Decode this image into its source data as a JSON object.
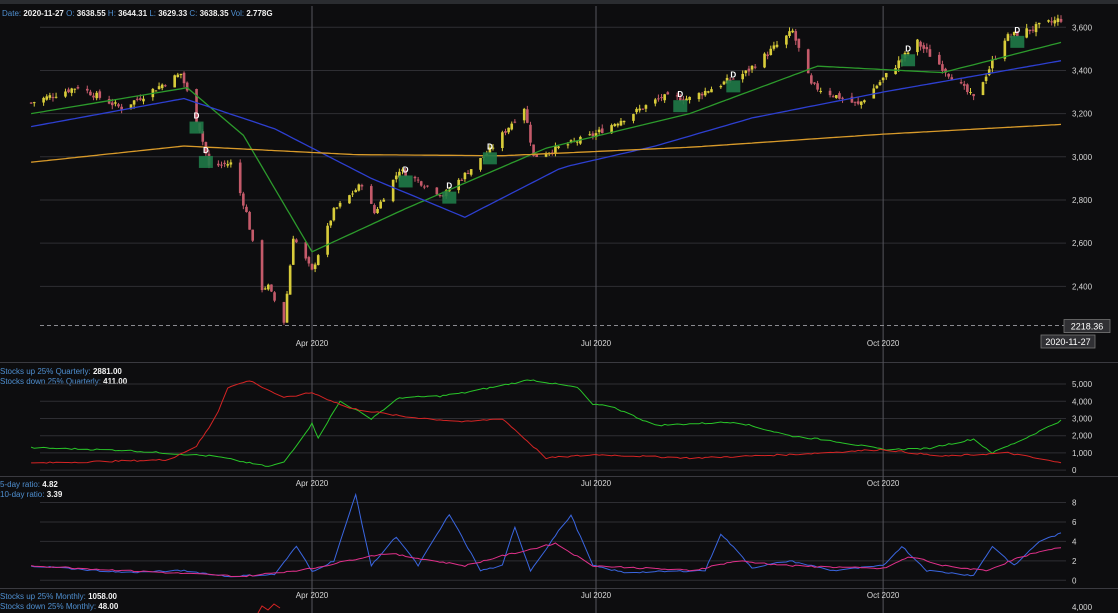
{
  "header": {
    "date_label": "Date:",
    "date": "2020-11-27",
    "open_label": "O:",
    "open": "3638.55",
    "high_label": "H:",
    "high": "3644.31",
    "low_label": "L:",
    "low": "3629.33",
    "close_label": "C:",
    "close": "3638.35",
    "vol_label": "Vol:",
    "vol": "2.778G"
  },
  "crosshair": {
    "price_value": "2218.36",
    "date_value": "2020-11-27"
  },
  "colors": {
    "background": "#0d0d0f",
    "grid": "#2e2e33",
    "axis_text": "#d8d8d8",
    "candle_up": "#d8cc3a",
    "candle_down": "#c45a6a",
    "sma_green": "#2c9a2c",
    "sma_blue": "#2d3fd0",
    "sma_orange": "#d89a2a",
    "marker_fill": "#1f7a48",
    "up25": "#29c429",
    "down25": "#d42424",
    "ratio5": "#3a66e0",
    "ratio10": "#e0308a"
  },
  "chart_data": [
    {
      "type": "candlestick",
      "title": "",
      "x_axis": {
        "range": [
          "2020-01-02",
          "2020-11-27"
        ],
        "tick_labels": [
          "Apr 2020",
          "Jul 2020",
          "Oct 2020"
        ]
      },
      "y_axis": {
        "range": [
          2170,
          3680
        ],
        "tick_labels": [
          "2,400",
          "2,600",
          "2,800",
          "3,000",
          "3,200",
          "3,400",
          "3,600"
        ],
        "ticks": [
          2400,
          2600,
          2800,
          3000,
          3200,
          3400,
          3600
        ]
      },
      "grid": true,
      "close_anchors": [
        [
          "2020-01-02",
          3250
        ],
        [
          "2020-01-17",
          3325
        ],
        [
          "2020-01-31",
          3225
        ],
        [
          "2020-02-19",
          3385
        ],
        [
          "2020-02-25",
          3130
        ],
        [
          "2020-02-28",
          2955
        ],
        [
          "2020-03-06",
          2970
        ],
        [
          "2020-03-11",
          2740
        ],
        [
          "2020-03-16",
          2390
        ],
        [
          "2020-03-18",
          2400
        ],
        [
          "2020-03-23",
          2235
        ],
        [
          "2020-03-26",
          2630
        ],
        [
          "2020-04-01",
          2470
        ],
        [
          "2020-04-08",
          2750
        ],
        [
          "2020-04-17",
          2875
        ],
        [
          "2020-04-21",
          2740
        ],
        [
          "2020-04-29",
          2940
        ],
        [
          "2020-05-13",
          2820
        ],
        [
          "2020-05-28",
          3030
        ],
        [
          "2020-06-08",
          3230
        ],
        [
          "2020-06-11",
          3000
        ],
        [
          "2020-06-30",
          3100
        ],
        [
          "2020-07-22",
          3275
        ],
        [
          "2020-07-31",
          3270
        ],
        [
          "2020-08-18",
          3390
        ],
        [
          "2020-09-02",
          3580
        ],
        [
          "2020-09-08",
          3330
        ],
        [
          "2020-09-23",
          3240
        ],
        [
          "2020-10-12",
          3530
        ],
        [
          "2020-10-30",
          3270
        ],
        [
          "2020-11-09",
          3550
        ],
        [
          "2020-11-27",
          3638
        ]
      ],
      "moving_averages": [
        {
          "color": "green",
          "anchors": [
            [
              "2020-01-02",
              3200
            ],
            [
              "2020-02-21",
              3320
            ],
            [
              "2020-03-10",
              3100
            ],
            [
              "2020-04-01",
              2560
            ],
            [
              "2020-05-01",
              2760
            ],
            [
              "2020-06-15",
              3040
            ],
            [
              "2020-07-31",
              3200
            ],
            [
              "2020-09-10",
              3420
            ],
            [
              "2020-10-20",
              3390
            ],
            [
              "2020-11-27",
              3530
            ]
          ]
        },
        {
          "color": "blue",
          "anchors": [
            [
              "2020-01-02",
              3140
            ],
            [
              "2020-02-20",
              3270
            ],
            [
              "2020-03-20",
              3130
            ],
            [
              "2020-04-20",
              2900
            ],
            [
              "2020-05-20",
              2720
            ],
            [
              "2020-06-20",
              2950
            ],
            [
              "2020-07-20",
              3050
            ],
            [
              "2020-08-20",
              3180
            ],
            [
              "2020-10-01",
              3300
            ],
            [
              "2020-11-27",
              3445
            ]
          ]
        },
        {
          "color": "orange",
          "anchors": [
            [
              "2020-01-02",
              2975
            ],
            [
              "2020-02-20",
              3050
            ],
            [
              "2020-04-15",
              3010
            ],
            [
              "2020-06-01",
              3005
            ],
            [
              "2020-08-01",
              3045
            ],
            [
              "2020-10-01",
              3105
            ],
            [
              "2020-11-27",
              3150
            ]
          ]
        }
      ],
      "marker_label": "D",
      "markers": [
        "2020-02-24",
        "2020-02-27",
        "2020-05-01",
        "2020-05-15",
        "2020-05-28",
        "2020-07-28",
        "2020-08-14",
        "2020-10-09",
        "2020-11-13"
      ]
    },
    {
      "type": "line",
      "legend": [
        {
          "label": "Stocks up 25% Quarterly:",
          "value": "2881.00"
        },
        {
          "label": "Stocks down 25% Quarterly:",
          "value": "411.00"
        }
      ],
      "x_axis": {
        "tick_labels": [
          "Apr 2020",
          "Jul 2020",
          "Oct 2020"
        ]
      },
      "y_axis": {
        "range": [
          -400,
          5700
        ],
        "tick_labels": [
          "0",
          "1,000",
          "2,000",
          "3,000",
          "4,000",
          "5,000"
        ],
        "ticks": [
          0,
          1000,
          2000,
          3000,
          4000,
          5000
        ]
      },
      "series": [
        {
          "color": "green",
          "anchors": [
            [
              "2020-01-02",
              1300
            ],
            [
              "2020-02-01",
              1150
            ],
            [
              "2020-03-01",
              800
            ],
            [
              "2020-03-18",
              200
            ],
            [
              "2020-03-23",
              450
            ],
            [
              "2020-04-01",
              2700
            ],
            [
              "2020-04-03",
              1900
            ],
            [
              "2020-04-10",
              4000
            ],
            [
              "2020-04-20",
              3000
            ],
            [
              "2020-04-29",
              4200
            ],
            [
              "2020-05-12",
              4300
            ],
            [
              "2020-05-20",
              4500
            ],
            [
              "2020-06-10",
              5250
            ],
            [
              "2020-06-25",
              4800
            ],
            [
              "2020-06-30",
              3800
            ],
            [
              "2020-07-06",
              3700
            ],
            [
              "2020-07-20",
              2600
            ],
            [
              "2020-08-15",
              2800
            ],
            [
              "2020-09-01",
              2000
            ],
            [
              "2020-09-15",
              1700
            ],
            [
              "2020-10-01",
              1200
            ],
            [
              "2020-10-15",
              1250
            ],
            [
              "2020-10-30",
              1800
            ],
            [
              "2020-11-05",
              1000
            ],
            [
              "2020-11-15",
              1800
            ],
            [
              "2020-11-27",
              2881
            ]
          ]
        },
        {
          "color": "red",
          "anchors": [
            [
              "2020-01-02",
              400
            ],
            [
              "2020-02-15",
              600
            ],
            [
              "2020-02-24",
              1400
            ],
            [
              "2020-03-01",
              3000
            ],
            [
              "2020-03-05",
              4800
            ],
            [
              "2020-03-12",
              5200
            ],
            [
              "2020-03-23",
              4200
            ],
            [
              "2020-04-01",
              4500
            ],
            [
              "2020-04-13",
              3600
            ],
            [
              "2020-05-01",
              3100
            ],
            [
              "2020-05-20",
              2800
            ],
            [
              "2020-06-01",
              3000
            ],
            [
              "2020-06-15",
              700
            ],
            [
              "2020-07-01",
              900
            ],
            [
              "2020-08-01",
              700
            ],
            [
              "2020-09-01",
              900
            ],
            [
              "2020-10-01",
              1200
            ],
            [
              "2020-10-20",
              800
            ],
            [
              "2020-11-10",
              1000
            ],
            [
              "2020-11-27",
              411
            ]
          ]
        }
      ]
    },
    {
      "type": "line",
      "legend": [
        {
          "label": "5-day ratio:",
          "value": "4.82"
        },
        {
          "label": "10-day ratio:",
          "value": "3.39"
        }
      ],
      "x_axis": {
        "tick_labels": [
          "Apr 2020",
          "Jul 2020",
          "Oct 2020"
        ]
      },
      "y_axis": {
        "range": [
          -1,
          9.7
        ],
        "tick_labels": [
          "0",
          "2",
          "4",
          "6",
          "8"
        ],
        "ticks": [
          0,
          2,
          4,
          6,
          8
        ]
      },
      "series": [
        {
          "color": "blue",
          "anchors": [
            [
              "2020-01-02",
              1.5
            ],
            [
              "2020-01-15",
              1.2
            ],
            [
              "2020-02-01",
              0.8
            ],
            [
              "2020-02-20",
              1.0
            ],
            [
              "2020-03-05",
              0.4
            ],
            [
              "2020-03-20",
              0.6
            ],
            [
              "2020-03-27",
              3.5
            ],
            [
              "2020-04-01",
              0.9
            ],
            [
              "2020-04-08",
              2.0
            ],
            [
              "2020-04-15",
              8.8
            ],
            [
              "2020-04-20",
              1.5
            ],
            [
              "2020-04-28",
              4.5
            ],
            [
              "2020-05-05",
              1.5
            ],
            [
              "2020-05-15",
              6.8
            ],
            [
              "2020-05-25",
              1.0
            ],
            [
              "2020-06-01",
              1.5
            ],
            [
              "2020-06-05",
              5.5
            ],
            [
              "2020-06-10",
              1.0
            ],
            [
              "2020-06-20",
              5.5
            ],
            [
              "2020-06-23",
              6.7
            ],
            [
              "2020-06-30",
              1.5
            ],
            [
              "2020-07-10",
              0.8
            ],
            [
              "2020-08-05",
              1.0
            ],
            [
              "2020-08-10",
              4.8
            ],
            [
              "2020-08-20",
              1.3
            ],
            [
              "2020-09-01",
              2.0
            ],
            [
              "2020-09-15",
              1.0
            ],
            [
              "2020-10-01",
              1.5
            ],
            [
              "2020-10-07",
              3.5
            ],
            [
              "2020-10-15",
              1.0
            ],
            [
              "2020-10-30",
              0.5
            ],
            [
              "2020-11-05",
              3.5
            ],
            [
              "2020-11-12",
              1.5
            ],
            [
              "2020-11-20",
              4.0
            ],
            [
              "2020-11-27",
              4.82
            ]
          ]
        },
        {
          "color": "magenta",
          "anchors": [
            [
              "2020-01-02",
              1.5
            ],
            [
              "2020-02-01",
              1.0
            ],
            [
              "2020-03-10",
              0.4
            ],
            [
              "2020-04-01",
              1.2
            ],
            [
              "2020-04-15",
              2.2
            ],
            [
              "2020-04-25",
              2.8
            ],
            [
              "2020-05-10",
              2.0
            ],
            [
              "2020-05-20",
              1.5
            ],
            [
              "2020-06-01",
              2.5
            ],
            [
              "2020-06-18",
              3.8
            ],
            [
              "2020-06-30",
              1.5
            ],
            [
              "2020-08-01",
              1.0
            ],
            [
              "2020-08-15",
              2.0
            ],
            [
              "2020-09-01",
              1.5
            ],
            [
              "2020-10-01",
              1.2
            ],
            [
              "2020-10-10",
              2.5
            ],
            [
              "2020-10-20",
              1.5
            ],
            [
              "2020-11-03",
              1.0
            ],
            [
              "2020-11-15",
              2.5
            ],
            [
              "2020-11-27",
              3.39
            ]
          ]
        }
      ]
    },
    {
      "type": "line",
      "legend": [
        {
          "label": "Stocks up 25% Monthly:",
          "value": "1058.00"
        },
        {
          "label": "Stocks down 25% Monthly:",
          "value": "48.00"
        }
      ],
      "y_axis": {
        "tick_labels": [
          "4,000"
        ],
        "ticks": [
          4000
        ]
      }
    }
  ]
}
